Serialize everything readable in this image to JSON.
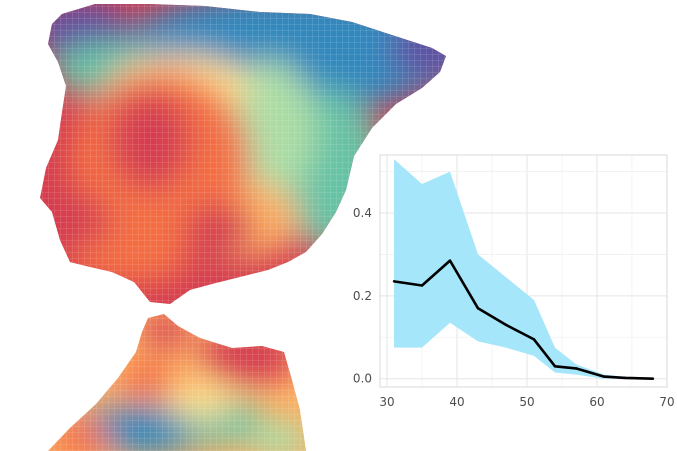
{
  "map": {
    "regions": [
      "iberian-peninsula",
      "north-africa"
    ],
    "palette": [
      "#d53e4f",
      "#f46d43",
      "#fdae61",
      "#fee08b",
      "#e6f598",
      "#abdda4",
      "#66c2a5",
      "#3288bd",
      "#5e4fa2"
    ]
  },
  "chart_data": {
    "type": "line",
    "title": "",
    "xlabel": "",
    "ylabel": "",
    "xlim": [
      29,
      70
    ],
    "ylim": [
      -0.02,
      0.54
    ],
    "xticks": [
      30,
      40,
      50,
      60,
      70
    ],
    "yticks": [
      0.0,
      0.2,
      0.4
    ],
    "xtick_labels": [
      "30",
      "40",
      "50",
      "60",
      "70"
    ],
    "ytick_labels": [
      "0.0",
      "0.2",
      "0.4"
    ],
    "grid": true,
    "line_color": "#000000",
    "band_color": "#a6e6fb",
    "series": [
      {
        "x": [
          31,
          35,
          39,
          43,
          47,
          51,
          54,
          57,
          61,
          64,
          68
        ],
        "y": [
          0.235,
          0.225,
          0.285,
          0.17,
          0.13,
          0.095,
          0.03,
          0.025,
          0.005,
          0.002,
          0.0
        ],
        "lower": [
          0.075,
          0.075,
          0.135,
          0.09,
          0.075,
          0.055,
          0.015,
          0.01,
          0.0,
          0.0,
          0.0
        ],
        "upper": [
          0.53,
          0.47,
          0.5,
          0.3,
          0.245,
          0.19,
          0.075,
          0.035,
          0.01,
          0.005,
          0.002
        ]
      }
    ]
  }
}
